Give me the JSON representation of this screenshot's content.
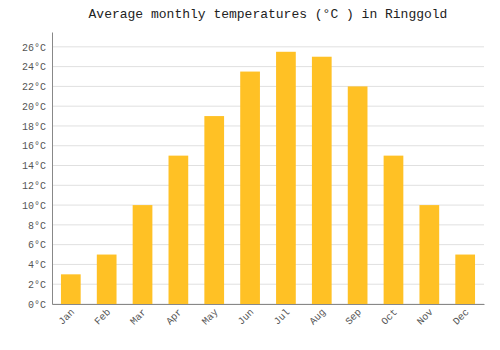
{
  "chart_data": {
    "type": "bar",
    "title": "Average monthly temperatures (°C ) in Ringgold",
    "categories": [
      "Jan",
      "Feb",
      "Mar",
      "Apr",
      "May",
      "Jun",
      "Jul",
      "Aug",
      "Sep",
      "Oct",
      "Nov",
      "Dec"
    ],
    "values": [
      3,
      5,
      10,
      15,
      19,
      23.5,
      25.5,
      25,
      22,
      15,
      10,
      5
    ],
    "color": "#FFC125",
    "ylim": [
      0,
      27.5
    ],
    "yticks": [
      {
        "value": 0,
        "label": "0°C"
      },
      {
        "value": 2,
        "label": "2°C"
      },
      {
        "value": 4,
        "label": "4°C"
      },
      {
        "value": 6,
        "label": "6°C"
      },
      {
        "value": 8,
        "label": "8°C"
      },
      {
        "value": 10,
        "label": "10°C"
      },
      {
        "value": 12,
        "label": "12°C"
      },
      {
        "value": 14,
        "label": "14°C"
      },
      {
        "value": 16,
        "label": "16°C"
      },
      {
        "value": 18,
        "label": "18°C"
      },
      {
        "value": 20,
        "label": "20°C"
      },
      {
        "value": 22,
        "label": "22°C"
      },
      {
        "value": 24,
        "label": "24°C"
      },
      {
        "value": 26,
        "label": "26°C"
      }
    ],
    "grid": true
  }
}
